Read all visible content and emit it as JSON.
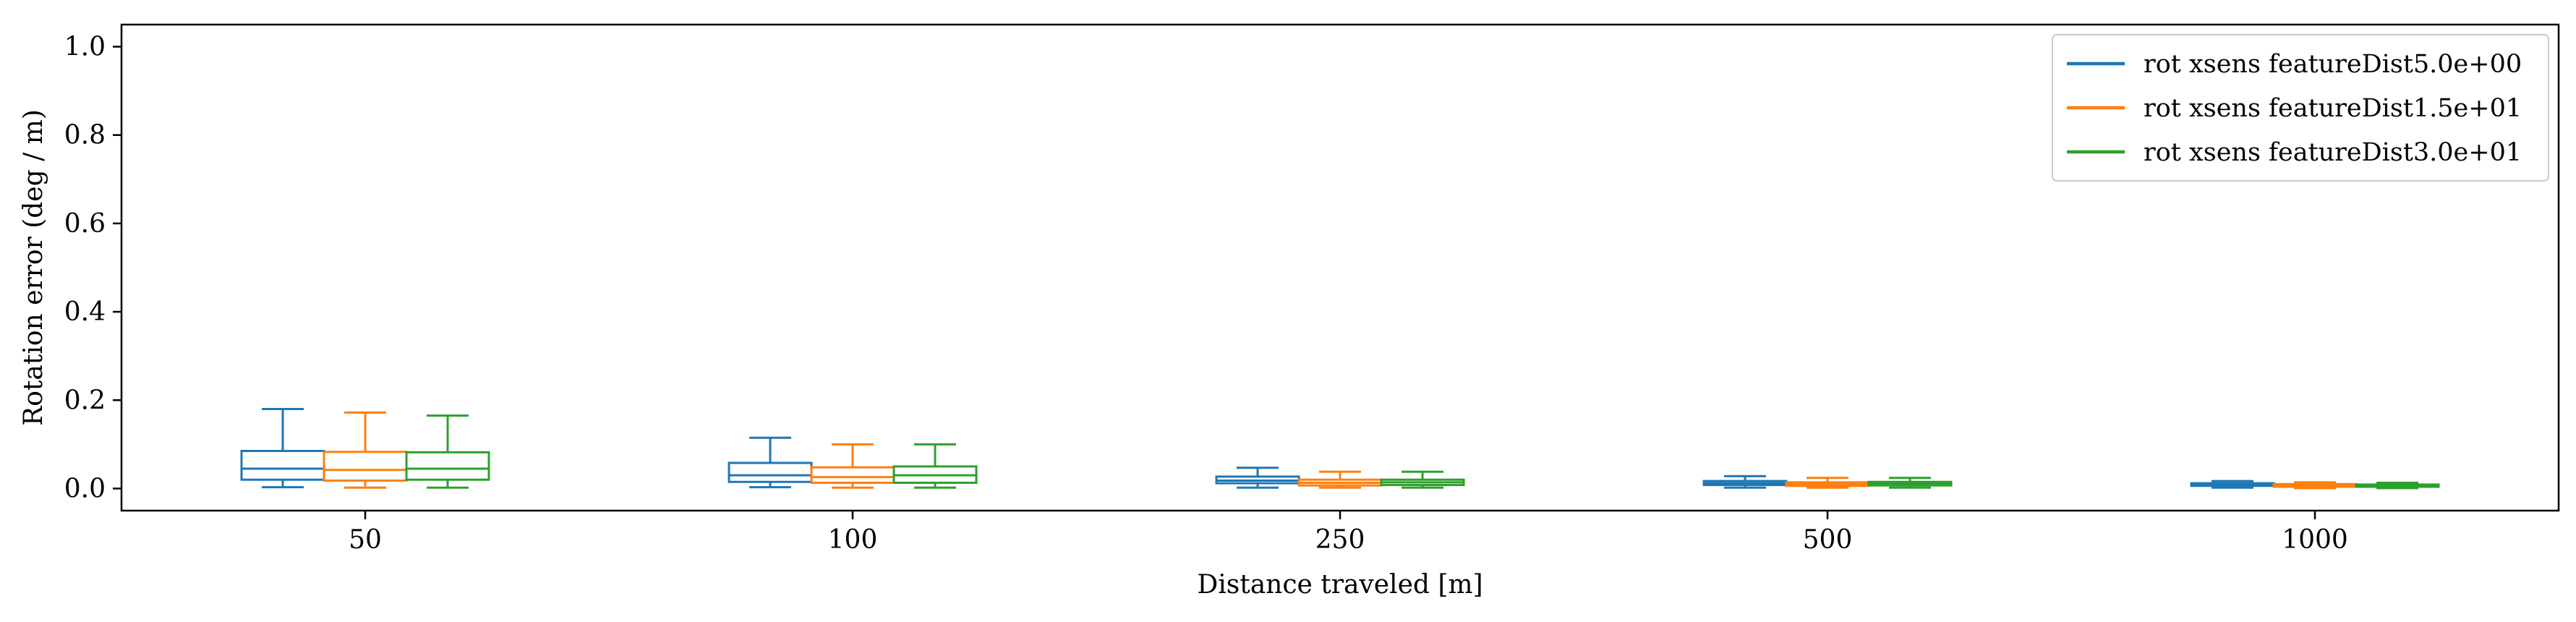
{
  "chart_data": {
    "type": "box",
    "xlabel": "Distance traveled [m]",
    "ylabel": "Rotation error (deg / m)",
    "ylim": [
      -0.05,
      1.05
    ],
    "yticks": [
      "0.0",
      "0.2",
      "0.4",
      "0.6",
      "0.8",
      "1.0"
    ],
    "yticks_values": [
      0.0,
      0.2,
      0.4,
      0.6,
      0.8,
      1.0
    ],
    "categories": [
      "50",
      "100",
      "250",
      "500",
      "1000"
    ],
    "grid": false,
    "legend_position": "top-right",
    "series": [
      {
        "name": "rot xsens featureDist5.0e+00",
        "color": "#1f77b4",
        "boxes": [
          {
            "min": 0.003,
            "q1": 0.02,
            "median": 0.045,
            "q3": 0.085,
            "max": 0.18
          },
          {
            "min": 0.003,
            "q1": 0.015,
            "median": 0.03,
            "q3": 0.058,
            "max": 0.115
          },
          {
            "min": 0.002,
            "q1": 0.012,
            "median": 0.018,
            "q3": 0.027,
            "max": 0.047
          },
          {
            "min": 0.002,
            "q1": 0.008,
            "median": 0.012,
            "q3": 0.017,
            "max": 0.028
          },
          {
            "min": 0.002,
            "q1": 0.006,
            "median": 0.009,
            "q3": 0.012,
            "max": 0.017
          }
        ]
      },
      {
        "name": "rot xsens featureDist1.5e+01",
        "color": "#ff7f0e",
        "boxes": [
          {
            "min": 0.002,
            "q1": 0.018,
            "median": 0.042,
            "q3": 0.083,
            "max": 0.172
          },
          {
            "min": 0.002,
            "q1": 0.013,
            "median": 0.026,
            "q3": 0.048,
            "max": 0.1
          },
          {
            "min": 0.002,
            "q1": 0.007,
            "median": 0.013,
            "q3": 0.02,
            "max": 0.038
          },
          {
            "min": 0.002,
            "q1": 0.006,
            "median": 0.01,
            "q3": 0.014,
            "max": 0.024
          },
          {
            "min": 0.001,
            "q1": 0.004,
            "median": 0.007,
            "q3": 0.01,
            "max": 0.014
          }
        ]
      },
      {
        "name": "rot xsens featureDist3.0e+01",
        "color": "#2ca02c",
        "boxes": [
          {
            "min": 0.002,
            "q1": 0.02,
            "median": 0.045,
            "q3": 0.082,
            "max": 0.165
          },
          {
            "min": 0.002,
            "q1": 0.013,
            "median": 0.03,
            "q3": 0.05,
            "max": 0.1
          },
          {
            "min": 0.002,
            "q1": 0.008,
            "median": 0.014,
            "q3": 0.02,
            "max": 0.038
          },
          {
            "min": 0.002,
            "q1": 0.007,
            "median": 0.011,
            "q3": 0.015,
            "max": 0.024
          },
          {
            "min": 0.001,
            "q1": 0.004,
            "median": 0.007,
            "q3": 0.009,
            "max": 0.013
          }
        ]
      }
    ]
  }
}
